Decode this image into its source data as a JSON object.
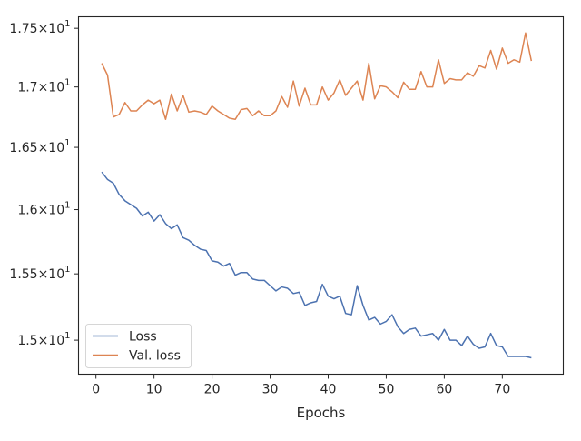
{
  "chart_data": {
    "type": "line",
    "title": "",
    "xlabel": "Epochs",
    "ylabel": "",
    "xlim": [
      -3,
      80.5
    ],
    "ylim": [
      14.75,
      17.6
    ],
    "y_scale": "log",
    "grid": false,
    "legend_position": "lower-left",
    "x_ticks": [
      0,
      10,
      20,
      30,
      40,
      50,
      60,
      70
    ],
    "x_tick_labels": [
      "0",
      "10",
      "20",
      "30",
      "40",
      "50",
      "60",
      "70"
    ],
    "y_ticks": [
      {
        "value": 15.0,
        "mantissa": "1.5",
        "base": "10",
        "exponent": "1"
      },
      {
        "value": 15.5,
        "mantissa": "1.55",
        "base": "10",
        "exponent": "1"
      },
      {
        "value": 16.0,
        "mantissa": "1.6",
        "base": "10",
        "exponent": "1"
      },
      {
        "value": 16.5,
        "mantissa": "1.65",
        "base": "10",
        "exponent": "1"
      },
      {
        "value": 17.0,
        "mantissa": "1.7",
        "base": "10",
        "exponent": "1"
      },
      {
        "value": 17.5,
        "mantissa": "1.75",
        "base": "10",
        "exponent": "1"
      }
    ],
    "x": [
      1,
      2,
      3,
      4,
      5,
      6,
      7,
      8,
      9,
      10,
      11,
      12,
      13,
      14,
      15,
      16,
      17,
      18,
      19,
      20,
      21,
      22,
      23,
      24,
      25,
      26,
      27,
      28,
      29,
      30,
      31,
      32,
      33,
      34,
      35,
      36,
      37,
      38,
      39,
      40,
      41,
      42,
      43,
      44,
      45,
      46,
      47,
      48,
      49,
      50,
      51,
      52,
      53,
      54,
      55,
      56,
      57,
      58,
      59,
      60,
      61,
      62,
      63,
      64,
      65,
      66,
      67,
      68,
      69,
      70,
      71,
      72,
      73,
      74,
      75
    ],
    "series": [
      {
        "name": "Loss",
        "color": "#4c72b0",
        "values": [
          16.3,
          16.24,
          16.21,
          16.12,
          16.07,
          16.04,
          16.01,
          15.95,
          15.98,
          15.91,
          15.96,
          15.89,
          15.85,
          15.88,
          15.78,
          15.76,
          15.72,
          15.69,
          15.68,
          15.6,
          15.59,
          15.56,
          15.58,
          15.49,
          15.51,
          15.51,
          15.46,
          15.45,
          15.45,
          15.41,
          15.37,
          15.4,
          15.39,
          15.35,
          15.36,
          15.26,
          15.28,
          15.29,
          15.42,
          15.33,
          15.31,
          15.33,
          15.2,
          15.19,
          15.41,
          15.26,
          15.15,
          15.17,
          15.12,
          15.14,
          15.19,
          15.1,
          15.05,
          15.08,
          15.09,
          15.03,
          15.04,
          15.05,
          15.0,
          15.08,
          15.0,
          15.0,
          14.96,
          15.03,
          14.97,
          14.94,
          14.95,
          15.05,
          14.96,
          14.95,
          14.88,
          14.88,
          14.88,
          14.88,
          14.87
        ]
      },
      {
        "name": "Val. loss",
        "color": "#dd8452",
        "values": [
          17.2,
          17.1,
          16.75,
          16.77,
          16.87,
          16.8,
          16.8,
          16.85,
          16.89,
          16.86,
          16.89,
          16.73,
          16.94,
          16.8,
          16.93,
          16.79,
          16.8,
          16.79,
          16.77,
          16.84,
          16.8,
          16.77,
          16.74,
          16.73,
          16.81,
          16.82,
          16.76,
          16.8,
          16.76,
          16.76,
          16.8,
          16.92,
          16.83,
          17.05,
          16.84,
          16.99,
          16.85,
          16.85,
          17.0,
          16.89,
          16.95,
          17.06,
          16.93,
          16.99,
          17.05,
          16.89,
          17.2,
          16.9,
          17.01,
          17.0,
          16.96,
          16.91,
          17.04,
          16.98,
          16.98,
          17.13,
          17.0,
          17.0,
          17.23,
          17.03,
          17.07,
          17.06,
          17.06,
          17.12,
          17.09,
          17.18,
          17.16,
          17.31,
          17.15,
          17.33,
          17.2,
          17.23,
          17.21,
          17.46,
          17.22
        ]
      }
    ]
  }
}
